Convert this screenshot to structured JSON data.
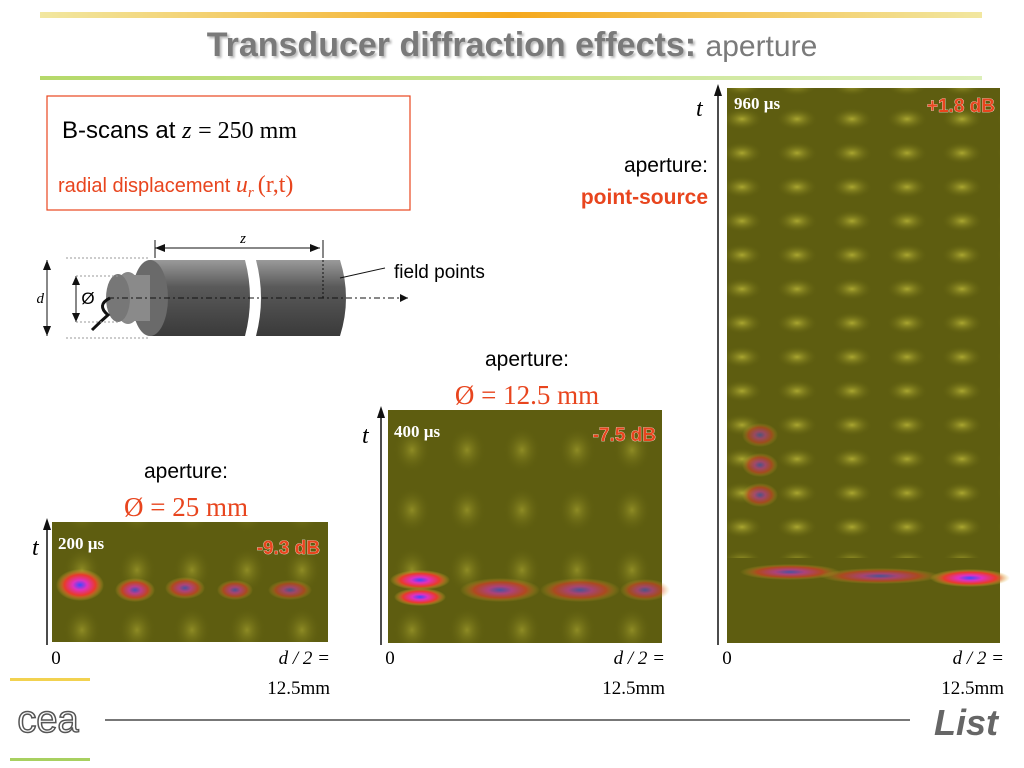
{
  "title": {
    "main": "Transducer diffraction effects:",
    "sub": "aperture"
  },
  "info_box": {
    "line1": "B-scans at",
    "line1_var": "z",
    "line1_value": "= 250 mm",
    "line2": "radial displacement",
    "line2_var": "u",
    "line2_sub": "r",
    "line2_args": "(r,t)"
  },
  "diagram": {
    "length_label": "z",
    "diameter_label": "d",
    "aperture_symbol": "Ø",
    "callout": "field points"
  },
  "panels": [
    {
      "caption": "aperture:",
      "aperture": "Ø = 25 mm",
      "axis_label": "t",
      "time": "200 µs",
      "gain": "-9.3 dB",
      "x_start": "0",
      "x_end": "d / 2 =",
      "x_end_value": "12.5mm"
    },
    {
      "caption": "aperture:",
      "aperture": "Ø = 12.5 mm",
      "axis_label": "t",
      "time": "400 µs",
      "gain": "-7.5 dB",
      "x_start": "0",
      "x_end": "d / 2 =",
      "x_end_value": "12.5mm"
    },
    {
      "caption": "aperture:",
      "aperture": "point-source",
      "axis_label": "t",
      "time": "960 µs",
      "gain": "+1.8 dB",
      "x_start": "0",
      "x_end": "d / 2 =",
      "x_end_value": "12.5mm"
    }
  ],
  "logos": {
    "left": "cea",
    "right": "List"
  }
}
